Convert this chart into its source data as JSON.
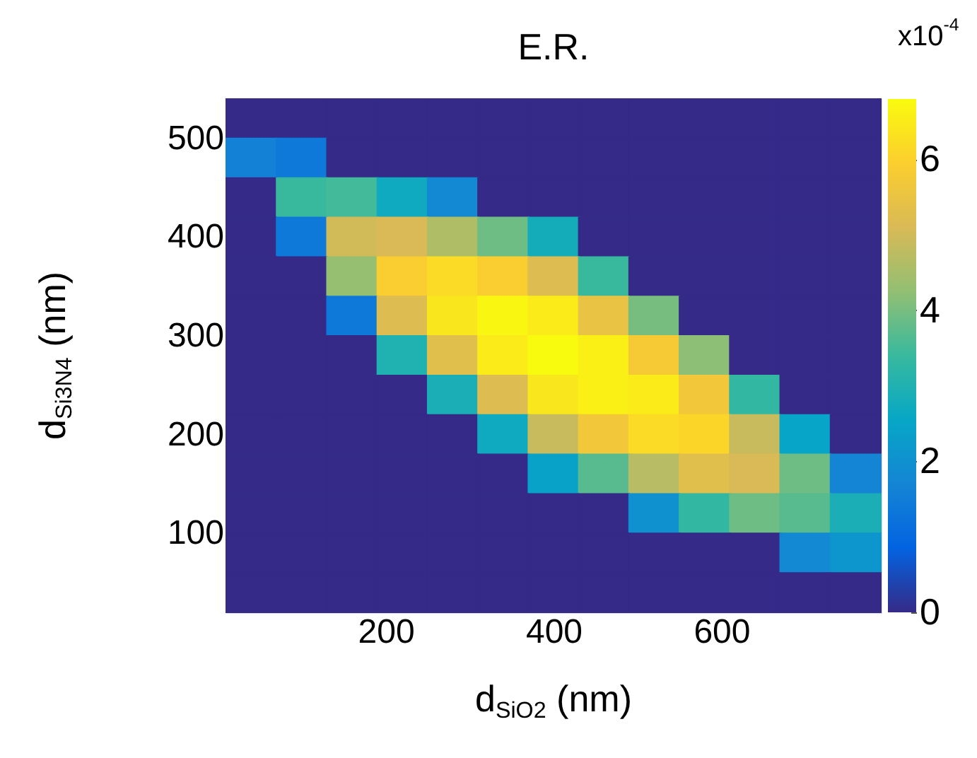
{
  "chart_data": {
    "type": "heatmap",
    "title": "E.R.",
    "xlabel": "d$_{SiO2}$ (nm)",
    "ylabel": "d$_{Si3N4}$ (nm)",
    "clabel": "x10$^{-4}$",
    "x": [
      40,
      100,
      160,
      220,
      280,
      340,
      400,
      460,
      520,
      580,
      640,
      700,
      760
    ],
    "y": [
      520,
      480,
      440,
      400,
      360,
      320,
      280,
      240,
      200,
      160,
      120,
      80,
      40
    ],
    "xlim": [
      10,
      790
    ],
    "ylim": [
      20,
      540
    ],
    "xticks": [
      200,
      400,
      600
    ],
    "yticks": [
      100,
      200,
      300,
      400,
      500
    ],
    "clim": [
      0,
      6.8
    ],
    "cticks": [
      0,
      2,
      4,
      6
    ],
    "colors": [
      "#352a87",
      "#0363e1",
      "#1485d4",
      "#06a7c6",
      "#38b99e",
      "#92bf73",
      "#d9ba56",
      "#fcce2e",
      "#f9fb0e"
    ],
    "cells": [
      [
        0,
        0,
        0,
        0,
        0,
        0,
        0,
        0,
        0,
        0,
        0,
        0,
        0
      ],
      [
        1.6,
        1.4,
        0,
        0,
        0,
        0,
        0,
        0,
        0,
        0,
        0,
        0,
        0
      ],
      [
        0,
        3.4,
        3.5,
        2.7,
        1.8,
        0,
        0,
        0,
        0,
        0,
        0,
        0,
        0
      ],
      [
        0,
        1.4,
        5.0,
        5.1,
        4.6,
        3.9,
        2.8,
        0,
        0,
        0,
        0,
        0,
        0
      ],
      [
        0,
        0,
        4.3,
        5.9,
        6.2,
        5.9,
        5.2,
        3.4,
        0,
        0,
        0,
        0,
        0
      ],
      [
        0,
        0,
        1.4,
        5.2,
        6.4,
        6.7,
        6.5,
        5.5,
        4.0,
        0,
        0,
        0,
        0
      ],
      [
        0,
        0,
        0,
        3.0,
        5.3,
        6.5,
        6.8,
        6.6,
        5.8,
        4.2,
        0,
        0,
        0
      ],
      [
        0,
        0,
        0,
        0,
        2.9,
        5.2,
        6.4,
        6.6,
        6.5,
        5.7,
        3.3,
        0,
        0
      ],
      [
        0,
        0,
        0,
        0,
        0,
        2.7,
        4.9,
        5.7,
        6.2,
        6.1,
        4.9,
        2.5,
        0
      ],
      [
        0,
        0,
        0,
        0,
        0,
        0,
        2.4,
        3.7,
        4.7,
        5.3,
        5.1,
        3.9,
        1.7
      ],
      [
        0,
        0,
        0,
        0,
        0,
        0,
        0,
        0,
        2.0,
        3.3,
        3.9,
        3.7,
        2.9
      ],
      [
        0,
        0,
        0,
        0,
        0,
        0,
        0,
        0,
        0,
        0,
        0,
        1.8,
        2.1
      ],
      [
        0,
        0,
        0,
        0,
        0,
        0,
        0,
        0,
        0,
        0,
        0,
        0,
        0
      ]
    ]
  }
}
